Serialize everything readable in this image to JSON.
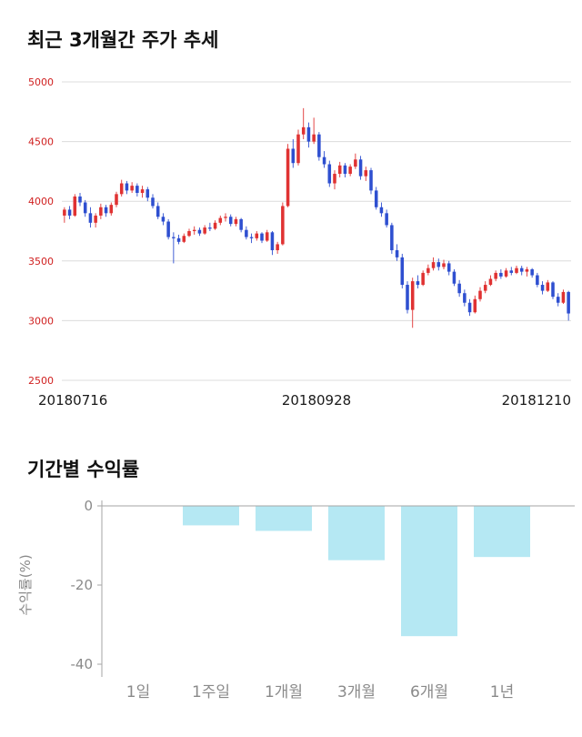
{
  "chart_data": [
    {
      "type": "candlestick",
      "title": "최근 3개월간 주가 추세",
      "x_tick_labels": [
        "20180716",
        "20180928",
        "20181210"
      ],
      "ylim": [
        2500,
        5000
      ],
      "y_ticks": [
        5000,
        4500,
        4000,
        3500,
        3000,
        2500
      ],
      "grid": true,
      "up_color": "#e03232",
      "down_color": "#2e4fd0",
      "tick_color": "#d02020",
      "x_label_color": "#1a1a1a",
      "grid_color": "#dcdcdc",
      "candles": [
        [
          3880,
          3950,
          3820,
          3930
        ],
        [
          3930,
          3960,
          3850,
          3880
        ],
        [
          3880,
          4060,
          3870,
          4040
        ],
        [
          4040,
          4070,
          3960,
          3990
        ],
        [
          3990,
          4010,
          3870,
          3900
        ],
        [
          3900,
          3950,
          3780,
          3820
        ],
        [
          3820,
          3900,
          3780,
          3880
        ],
        [
          3880,
          3980,
          3850,
          3950
        ],
        [
          3950,
          3970,
          3870,
          3900
        ],
        [
          3900,
          3990,
          3880,
          3970
        ],
        [
          3970,
          4080,
          3950,
          4060
        ],
        [
          4060,
          4180,
          4040,
          4150
        ],
        [
          4150,
          4170,
          4060,
          4090
        ],
        [
          4090,
          4160,
          4070,
          4130
        ],
        [
          4130,
          4150,
          4040,
          4070
        ],
        [
          4070,
          4130,
          4030,
          4100
        ],
        [
          4100,
          4120,
          4000,
          4030
        ],
        [
          4030,
          4060,
          3940,
          3960
        ],
        [
          3960,
          3990,
          3850,
          3870
        ],
        [
          3870,
          3900,
          3800,
          3830
        ],
        [
          3830,
          3850,
          3680,
          3700
        ],
        [
          3700,
          3740,
          3480,
          3690
        ],
        [
          3690,
          3720,
          3640,
          3660
        ],
        [
          3660,
          3730,
          3650,
          3710
        ],
        [
          3710,
          3770,
          3700,
          3750
        ],
        [
          3750,
          3790,
          3720,
          3760
        ],
        [
          3760,
          3780,
          3710,
          3730
        ],
        [
          3730,
          3800,
          3720,
          3780
        ],
        [
          3780,
          3820,
          3750,
          3770
        ],
        [
          3770,
          3840,
          3760,
          3820
        ],
        [
          3820,
          3880,
          3800,
          3860
        ],
        [
          3860,
          3900,
          3830,
          3870
        ],
        [
          3870,
          3890,
          3790,
          3810
        ],
        [
          3810,
          3870,
          3790,
          3850
        ],
        [
          3850,
          3860,
          3740,
          3760
        ],
        [
          3760,
          3790,
          3680,
          3700
        ],
        [
          3700,
          3730,
          3650,
          3690
        ],
        [
          3690,
          3750,
          3670,
          3730
        ],
        [
          3730,
          3740,
          3650,
          3670
        ],
        [
          3670,
          3760,
          3660,
          3740
        ],
        [
          3740,
          3750,
          3550,
          3590
        ],
        [
          3590,
          3660,
          3560,
          3640
        ],
        [
          3640,
          3990,
          3630,
          3960
        ],
        [
          3960,
          4480,
          3950,
          4440
        ],
        [
          4440,
          4520,
          4280,
          4320
        ],
        [
          4320,
          4600,
          4300,
          4560
        ],
        [
          4560,
          4780,
          4520,
          4620
        ],
        [
          4620,
          4660,
          4450,
          4500
        ],
        [
          4500,
          4700,
          4480,
          4560
        ],
        [
          4560,
          4580,
          4340,
          4370
        ],
        [
          4370,
          4420,
          4280,
          4310
        ],
        [
          4310,
          4340,
          4120,
          4150
        ],
        [
          4150,
          4260,
          4100,
          4230
        ],
        [
          4230,
          4330,
          4200,
          4300
        ],
        [
          4300,
          4320,
          4200,
          4230
        ],
        [
          4230,
          4310,
          4210,
          4290
        ],
        [
          4290,
          4400,
          4270,
          4350
        ],
        [
          4350,
          4380,
          4180,
          4210
        ],
        [
          4210,
          4290,
          4170,
          4260
        ],
        [
          4260,
          4280,
          4060,
          4090
        ],
        [
          4090,
          4120,
          3930,
          3950
        ],
        [
          3950,
          3990,
          3870,
          3900
        ],
        [
          3900,
          3930,
          3780,
          3800
        ],
        [
          3800,
          3820,
          3560,
          3590
        ],
        [
          3590,
          3640,
          3500,
          3530
        ],
        [
          3530,
          3560,
          3270,
          3300
        ],
        [
          3300,
          3330,
          3060,
          3090
        ],
        [
          3090,
          3360,
          2940,
          3330
        ],
        [
          3330,
          3380,
          3270,
          3300
        ],
        [
          3300,
          3420,
          3290,
          3400
        ],
        [
          3400,
          3470,
          3380,
          3440
        ],
        [
          3440,
          3530,
          3420,
          3490
        ],
        [
          3490,
          3520,
          3420,
          3450
        ],
        [
          3450,
          3510,
          3430,
          3480
        ],
        [
          3480,
          3500,
          3380,
          3410
        ],
        [
          3410,
          3430,
          3290,
          3310
        ],
        [
          3310,
          3340,
          3200,
          3230
        ],
        [
          3230,
          3260,
          3120,
          3150
        ],
        [
          3150,
          3180,
          3040,
          3070
        ],
        [
          3070,
          3210,
          3060,
          3180
        ],
        [
          3180,
          3280,
          3160,
          3250
        ],
        [
          3250,
          3330,
          3230,
          3300
        ],
        [
          3300,
          3380,
          3290,
          3350
        ],
        [
          3350,
          3420,
          3330,
          3400
        ],
        [
          3400,
          3430,
          3350,
          3370
        ],
        [
          3370,
          3440,
          3360,
          3420
        ],
        [
          3420,
          3450,
          3380,
          3400
        ],
        [
          3400,
          3460,
          3390,
          3440
        ],
        [
          3440,
          3460,
          3380,
          3410
        ],
        [
          3410,
          3450,
          3370,
          3430
        ],
        [
          3430,
          3440,
          3360,
          3380
        ],
        [
          3380,
          3400,
          3280,
          3300
        ],
        [
          3300,
          3330,
          3220,
          3250
        ],
        [
          3250,
          3340,
          3240,
          3320
        ],
        [
          3320,
          3330,
          3180,
          3200
        ],
        [
          3200,
          3230,
          3120,
          3150
        ],
        [
          3150,
          3260,
          3140,
          3240
        ],
        [
          3240,
          3250,
          3000,
          3060
        ]
      ]
    },
    {
      "type": "bar",
      "title": "기간별 수익률",
      "categories": [
        "1일",
        "1주일",
        "1개월",
        "3개월",
        "6개월",
        "1년"
      ],
      "values": [
        0,
        -4.8,
        -6.2,
        -13.6,
        -32.8,
        -12.8
      ],
      "ylabel": "수익률(%)",
      "ylim": [
        -40,
        0
      ],
      "y_ticks": [
        0,
        -20,
        -40
      ],
      "bar_color": "#b5e8f3",
      "axis_color": "#a6a6a6",
      "label_color": "#8a8a8a",
      "grid": false,
      "legend": "none"
    }
  ]
}
